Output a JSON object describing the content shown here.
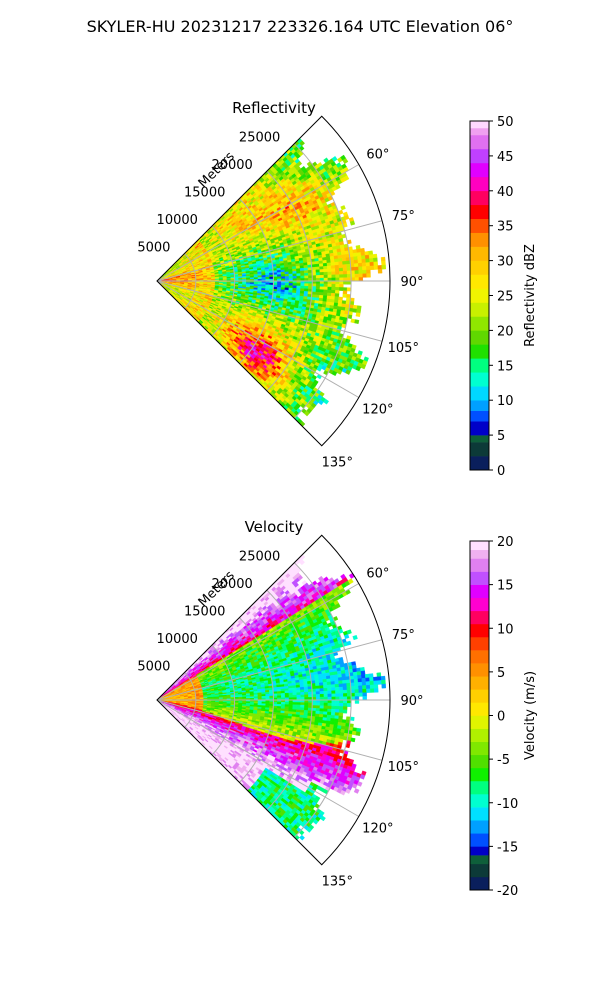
{
  "figure_title": "SKYLER-HU  20231217  223326.164 UTC Elevation 06°",
  "chart_data": [
    {
      "type": "heatmap",
      "subtype": "polar-sector (radar PPI)",
      "title": "Reflectivity",
      "radial_axis_label": "Meters",
      "radial_ticks": [
        "5000",
        "10000",
        "15000",
        "20000",
        "25000"
      ],
      "angular_ticks": [
        "60°",
        "75°",
        "90°",
        "105°",
        "120°",
        "135°"
      ],
      "azimuth_range_deg": [
        45,
        135
      ],
      "range_max_m": 30000,
      "grid": true,
      "colorbar": {
        "label": "Reflectivity dBZ",
        "ticks": [
          "0",
          "5",
          "10",
          "15",
          "20",
          "25",
          "30",
          "35",
          "40",
          "45",
          "50"
        ],
        "range": [
          0,
          50
        ]
      },
      "field_description": "Widespread 20–30 dBZ echoes with embedded 35–40 dBZ cells; strongest near 120–130° at 15–25 km"
    },
    {
      "type": "heatmap",
      "subtype": "polar-sector (radar PPI)",
      "title": "Velocity",
      "radial_axis_label": "Meters",
      "radial_ticks": [
        "5000",
        "10000",
        "15000",
        "20000",
        "25000"
      ],
      "angular_ticks": [
        "60°",
        "75°",
        "90°",
        "105°",
        "120°",
        "135°"
      ],
      "azimuth_range_deg": [
        45,
        135
      ],
      "range_max_m": 30000,
      "grid": true,
      "colorbar": {
        "label": "Velocity (m/s)",
        "ticks": [
          "-20",
          "-15",
          "-10",
          "-5",
          "0",
          "5",
          "10",
          "15",
          "20"
        ],
        "range": [
          -20,
          20
        ]
      },
      "field_description": "Outbound 5–20 m/s south of the radar (100–135°), inbound -5 to -15 m/s east (80–120°), outbound 10–20 m/s near 50–60°"
    }
  ],
  "colors": {
    "background": "#ffffff",
    "grid": "#b0b0b0"
  }
}
